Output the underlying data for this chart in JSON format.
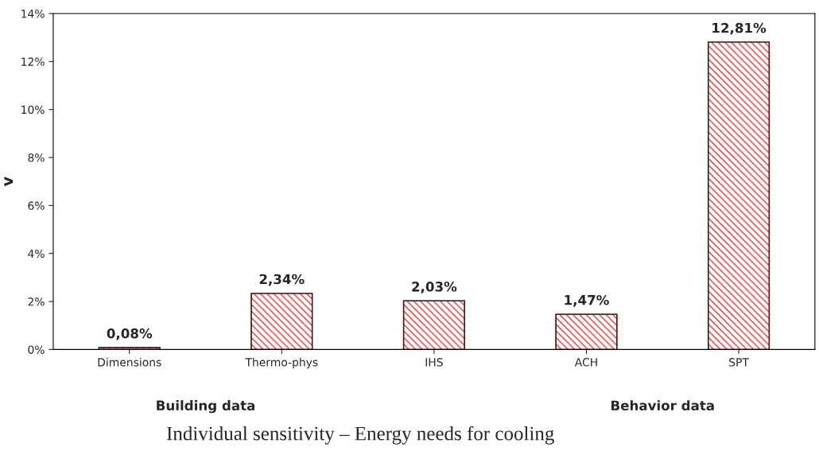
{
  "chart_data": {
    "type": "bar",
    "title": "Individual sensitivity – Energy needs for cooling",
    "ylabel": "v",
    "categories": [
      "Dimensions",
      "Thermo-phys",
      "IHS",
      "ACH",
      "SPT"
    ],
    "values": [
      0.08,
      2.34,
      2.03,
      1.47,
      12.81
    ],
    "value_labels": [
      "0,08%",
      "2,34%",
      "2,03%",
      "1,47%",
      "12,81%"
    ],
    "color": "#e03030",
    "ylim": [
      0,
      14
    ],
    "yticks": [
      {
        "value": 0,
        "label": "0%"
      },
      {
        "value": 2,
        "label": "2%"
      },
      {
        "value": 4,
        "label": "4%"
      },
      {
        "value": 6,
        "label": "6%"
      },
      {
        "value": 8,
        "label": "8%"
      },
      {
        "value": 10,
        "label": "10%"
      },
      {
        "value": 12,
        "label": "12%"
      },
      {
        "value": 14,
        "label": "14%"
      }
    ],
    "annotations": [
      "Building data",
      "Behavior data"
    ],
    "grid": false
  }
}
